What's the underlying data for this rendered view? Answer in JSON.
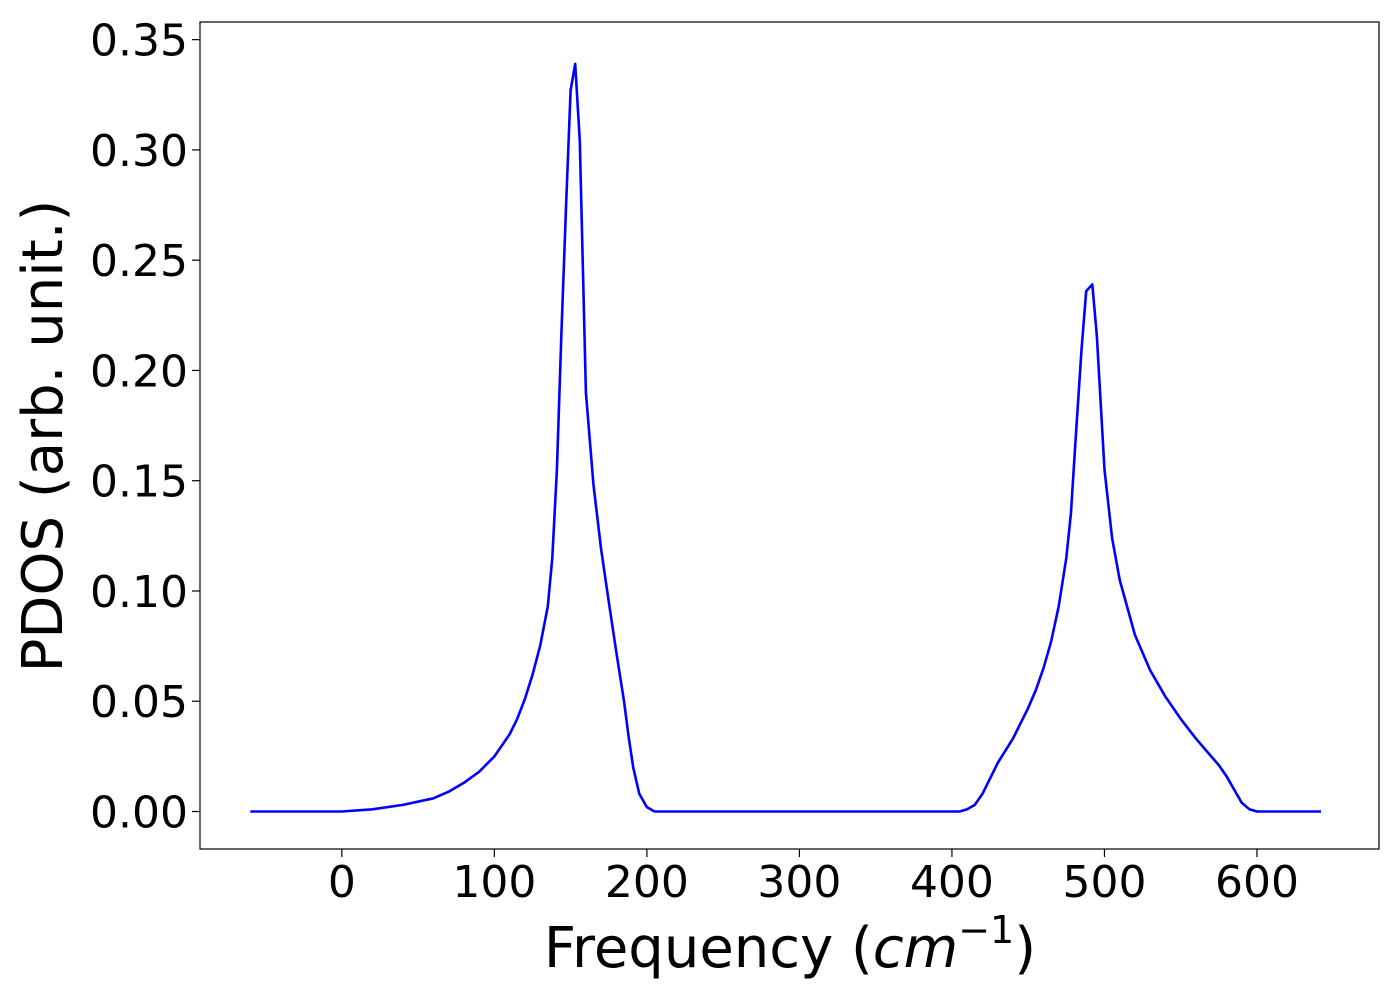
{
  "chart_data": {
    "type": "line",
    "title": "",
    "xlabel_main": "Frequency (",
    "xlabel_math": "cm",
    "xlabel_sup": "−1",
    "xlabel_close": ")",
    "ylabel": "PDOS (arb. unit.)",
    "xlim": [
      -93,
      680
    ],
    "ylim": [
      -0.017,
      0.358
    ],
    "xticks": [
      0,
      100,
      200,
      300,
      400,
      500,
      600
    ],
    "xtick_labels": [
      "0",
      "100",
      "200",
      "300",
      "400",
      "500",
      "600"
    ],
    "yticks": [
      0.0,
      0.05,
      0.1,
      0.15,
      0.2,
      0.25,
      0.3,
      0.35
    ],
    "ytick_labels": [
      "0.00",
      "0.05",
      "0.10",
      "0.15",
      "0.20",
      "0.25",
      "0.30",
      "0.35"
    ],
    "grid": false,
    "series": [
      {
        "color": "#0000ff",
        "x": [
          -60,
          -20,
          0,
          20,
          40,
          60,
          70,
          80,
          90,
          100,
          110,
          115,
          120,
          125,
          130,
          135,
          138,
          141,
          144,
          147,
          150,
          153,
          156,
          160,
          165,
          170,
          175,
          180,
          185,
          188,
          191,
          195,
          200,
          205,
          210,
          250,
          300,
          350,
          400,
          405,
          410,
          415,
          420,
          425,
          430,
          440,
          450,
          455,
          460,
          465,
          470,
          475,
          478,
          481,
          485,
          488,
          492,
          495,
          500,
          505,
          510,
          520,
          530,
          540,
          550,
          560,
          570,
          575,
          580,
          585,
          590,
          595,
          600,
          620,
          642
        ],
        "y": [
          0.0,
          0.0,
          0.0,
          0.001,
          0.003,
          0.006,
          0.009,
          0.013,
          0.018,
          0.025,
          0.035,
          0.042,
          0.051,
          0.062,
          0.075,
          0.093,
          0.115,
          0.155,
          0.218,
          0.275,
          0.327,
          0.339,
          0.304,
          0.19,
          0.148,
          0.119,
          0.095,
          0.072,
          0.05,
          0.034,
          0.02,
          0.008,
          0.002,
          0.0,
          0.0,
          0.0,
          0.0,
          0.0,
          0.0,
          0.0,
          0.001,
          0.003,
          0.008,
          0.015,
          0.022,
          0.033,
          0.047,
          0.055,
          0.065,
          0.077,
          0.093,
          0.115,
          0.135,
          0.168,
          0.21,
          0.236,
          0.239,
          0.216,
          0.155,
          0.124,
          0.105,
          0.08,
          0.064,
          0.052,
          0.042,
          0.033,
          0.025,
          0.021,
          0.016,
          0.01,
          0.004,
          0.001,
          0.0,
          0.0,
          0.0
        ]
      }
    ]
  }
}
